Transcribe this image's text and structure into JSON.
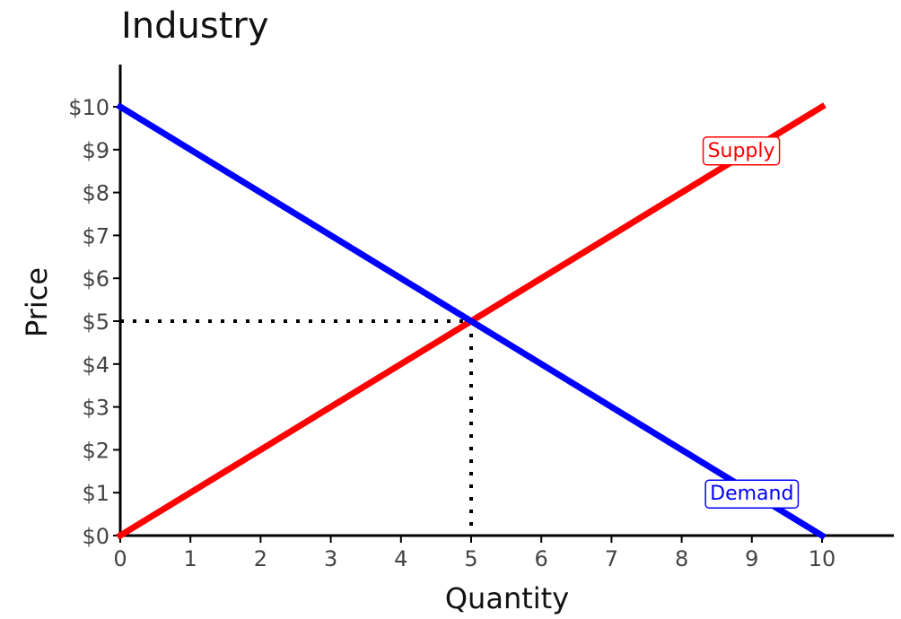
{
  "chart_data": {
    "type": "line",
    "title": "Industry",
    "xlabel": "Quantity",
    "ylabel": "Price",
    "xlim": [
      0,
      10
    ],
    "ylim": [
      0,
      10
    ],
    "x_ticks": [
      "0",
      "1",
      "2",
      "3",
      "4",
      "5",
      "6",
      "7",
      "8",
      "9",
      "10"
    ],
    "y_ticks": [
      "$0",
      "$1",
      "$2",
      "$3",
      "$4",
      "$5",
      "$6",
      "$7",
      "$8",
      "$9",
      "$10"
    ],
    "grid": false,
    "series": [
      {
        "name": "Supply",
        "color": "#ff0000",
        "points": [
          [
            0,
            0
          ],
          [
            10,
            10
          ]
        ]
      },
      {
        "name": "Demand",
        "color": "#0000ff",
        "points": [
          [
            0,
            10
          ],
          [
            10,
            0
          ]
        ]
      }
    ],
    "annotations": {
      "equilibrium": {
        "x": 5,
        "y": 5,
        "line_style": "dotted"
      },
      "labels": [
        {
          "text": "Supply",
          "x": 8.85,
          "y": 9.0,
          "color": "#ff0000"
        },
        {
          "text": "Demand",
          "x": 9.0,
          "y": 1.0,
          "color": "#0000ff"
        }
      ]
    }
  }
}
